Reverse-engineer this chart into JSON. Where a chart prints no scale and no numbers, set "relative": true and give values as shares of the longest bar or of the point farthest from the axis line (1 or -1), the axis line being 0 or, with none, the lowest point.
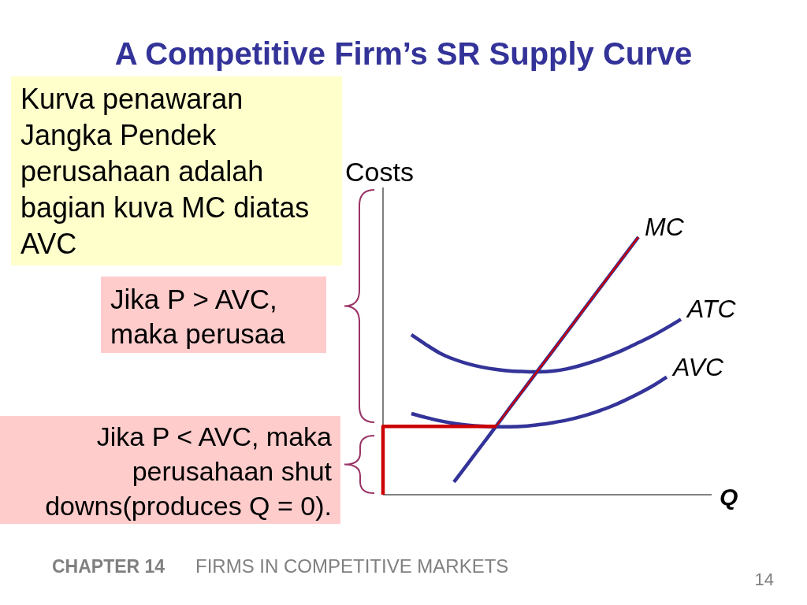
{
  "chart_data": {
    "type": "line",
    "title": "A Competitive Firm’s SR Supply Curve",
    "xlabel": "Q",
    "ylabel": "Costs",
    "relative": true,
    "categories": [
      null,
      null,
      null,
      null,
      null,
      null,
      null,
      null,
      null,
      null,
      null,
      null,
      null,
      null,
      null,
      null,
      null,
      null,
      null,
      null,
      null,
      null,
      null,
      null
    ],
    "series": [
      {
        "name": "MC",
        "color": "#333399",
        "values": [
          null,
          null,
          null,
          null,
          null,
          0.049,
          0.122,
          0.195,
          0.268,
          0.342,
          0.415,
          0.488,
          0.561,
          0.634,
          0.708,
          0.781,
          0.854,
          0.927,
          1,
          null,
          null,
          null,
          null,
          null
        ]
      },
      {
        "name": "ATC",
        "color": "#333399",
        "values": [
          null,
          null,
          0.621,
          0.584,
          0.55,
          0.526,
          0.508,
          0.495,
          0.486,
          0.48,
          0.478,
          0.477,
          0.48,
          0.489,
          0.503,
          0.52,
          0.541,
          0.564,
          0.59,
          0.617,
          0.648,
          0.681,
          null,
          null
        ]
      },
      {
        "name": "AVC",
        "color": "#333399",
        "values": [
          null,
          null,
          0.315,
          0.3,
          0.287,
          0.277,
          0.27,
          0.266,
          0.264,
          0.264,
          0.266,
          0.272,
          0.28,
          0.29,
          0.304,
          0.321,
          0.341,
          0.365,
          0.392,
          0.422,
          0.457,
          null,
          null,
          null
        ]
      },
      {
        "type": "step",
        "color": "#cc0000",
        "values": [
          0,
          0.265,
          0.265,
          0.265,
          0.265,
          0.265,
          0.265,
          0.265,
          0.265,
          null,
          null,
          null,
          null,
          null,
          null,
          null,
          null,
          null,
          null,
          null,
          null,
          null,
          null,
          null
        ]
      },
      {
        "color": "#cc0000",
        "values": [
          null,
          null,
          null,
          null,
          null,
          null,
          null,
          null,
          0.268,
          0.342,
          0.415,
          0.488,
          0.561,
          0.634,
          0.708,
          0.781,
          0.854,
          0.927,
          1,
          null,
          null,
          null,
          null,
          null
        ]
      }
    ],
    "annotations": [
      "Kurva penawaran Jangka Pendek perusahaan adalah bagian kuva MC diatas AVC",
      "Jika P > AVC, maka perusaa",
      "Jika P < AVC, maka perusahaan shut downs(produces Q = 0).",
      "CHAPTER 14",
      "FIRMS IN COMPETITIVE MARKETS",
      "14"
    ]
  }
}
